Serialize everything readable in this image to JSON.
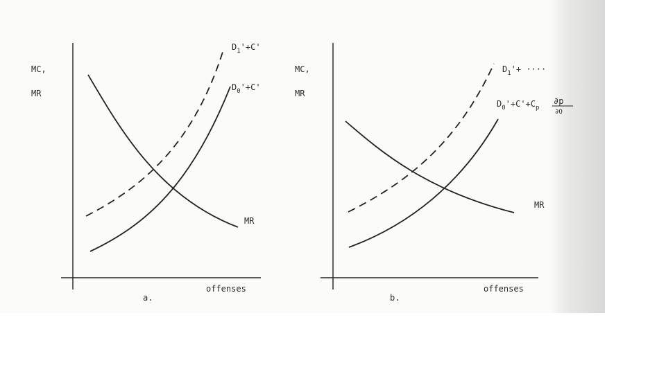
{
  "figure": {
    "panel_a": {
      "y_label_line1": "MC,",
      "y_label_line2": "MR",
      "x_label": "offenses",
      "caption": "a.",
      "curves": {
        "upper_main": "D",
        "upper_sub": "1",
        "upper_rest": "'+C'",
        "lower_main": "D",
        "lower_sub": "0",
        "lower_rest": "'+C'",
        "mr": "MR"
      }
    },
    "panel_b": {
      "y_label_line1": "MC,",
      "y_label_line2": "MR",
      "x_label": "offenses",
      "caption": "b.",
      "curves": {
        "upper_main": "D",
        "upper_sub": "1",
        "upper_rest": "'+ ····",
        "lower_main": "D",
        "lower_sub": "0",
        "lower_rest": "'+C'+C",
        "lower_p_sub": "p",
        "fraction_num": "∂p",
        "fraction_den": "∂O",
        "mr": "MR"
      }
    }
  }
}
